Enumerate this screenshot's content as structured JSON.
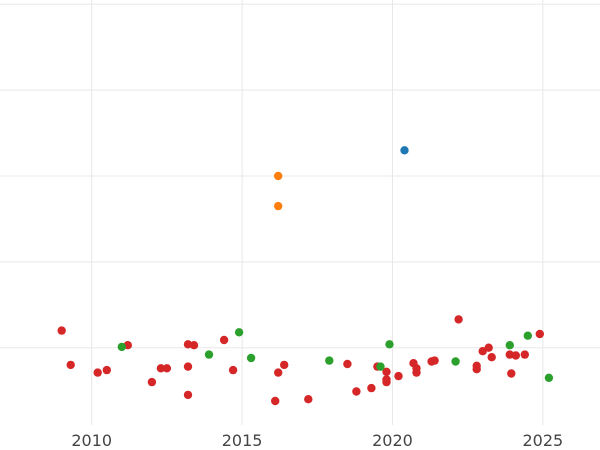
{
  "chart_data": {
    "type": "scatter",
    "title": "",
    "xlabel": "",
    "ylabel": "",
    "xlim": [
      2006.95,
      2026.9
    ],
    "ylim": [
      -0.9,
      4.05
    ],
    "grid": true,
    "x_ticks": [
      2010,
      2015,
      2020,
      2025
    ],
    "x_tick_labels": [
      "2010",
      "2015",
      "2020",
      "2025"
    ],
    "y_gridlines": [
      0,
      1,
      2,
      3,
      4
    ],
    "series": [
      {
        "color": "#d62728",
        "points": [
          {
            "x": 2009.0,
            "y": 0.2
          },
          {
            "x": 2009.3,
            "y": -0.2
          },
          {
            "x": 2010.2,
            "y": -0.29
          },
          {
            "x": 2010.5,
            "y": -0.26
          },
          {
            "x": 2011.2,
            "y": 0.03
          },
          {
            "x": 2012.0,
            "y": -0.4
          },
          {
            "x": 2012.3,
            "y": -0.24
          },
          {
            "x": 2012.5,
            "y": -0.24
          },
          {
            "x": 2013.2,
            "y": 0.04
          },
          {
            "x": 2013.2,
            "y": -0.22
          },
          {
            "x": 2013.4,
            "y": 0.03
          },
          {
            "x": 2013.2,
            "y": -0.55
          },
          {
            "x": 2014.4,
            "y": 0.09
          },
          {
            "x": 2014.7,
            "y": -0.26
          },
          {
            "x": 2016.1,
            "y": -0.62
          },
          {
            "x": 2016.2,
            "y": -0.29
          },
          {
            "x": 2016.4,
            "y": -0.2
          },
          {
            "x": 2017.2,
            "y": -0.6
          },
          {
            "x": 2018.5,
            "y": -0.19
          },
          {
            "x": 2018.8,
            "y": -0.51
          },
          {
            "x": 2019.3,
            "y": -0.47
          },
          {
            "x": 2019.5,
            "y": -0.22
          },
          {
            "x": 2019.8,
            "y": -0.28
          },
          {
            "x": 2019.8,
            "y": -0.37
          },
          {
            "x": 2019.8,
            "y": -0.4
          },
          {
            "x": 2020.2,
            "y": -0.33
          },
          {
            "x": 2020.7,
            "y": -0.18
          },
          {
            "x": 2020.8,
            "y": -0.24
          },
          {
            "x": 2020.8,
            "y": -0.29
          },
          {
            "x": 2021.3,
            "y": -0.16
          },
          {
            "x": 2021.4,
            "y": -0.15
          },
          {
            "x": 2022.2,
            "y": 0.33
          },
          {
            "x": 2022.8,
            "y": -0.21
          },
          {
            "x": 2022.8,
            "y": -0.25
          },
          {
            "x": 2023.0,
            "y": -0.04
          },
          {
            "x": 2023.2,
            "y": 0.0
          },
          {
            "x": 2023.3,
            "y": -0.11
          },
          {
            "x": 2023.9,
            "y": -0.08
          },
          {
            "x": 2023.95,
            "y": -0.3
          },
          {
            "x": 2024.1,
            "y": -0.09
          },
          {
            "x": 2024.4,
            "y": -0.08
          },
          {
            "x": 2024.9,
            "y": 0.16
          }
        ]
      },
      {
        "color": "#2ca02c",
        "points": [
          {
            "x": 2011.0,
            "y": 0.01
          },
          {
            "x": 2013.9,
            "y": -0.08
          },
          {
            "x": 2014.9,
            "y": 0.18
          },
          {
            "x": 2015.3,
            "y": -0.12
          },
          {
            "x": 2017.9,
            "y": -0.15
          },
          {
            "x": 2019.6,
            "y": -0.22
          },
          {
            "x": 2019.9,
            "y": 0.04
          },
          {
            "x": 2022.1,
            "y": -0.16
          },
          {
            "x": 2023.9,
            "y": 0.03
          },
          {
            "x": 2024.5,
            "y": 0.14
          },
          {
            "x": 2025.2,
            "y": -0.35
          }
        ]
      },
      {
        "color": "#ff7f0e",
        "points": [
          {
            "x": 2016.2,
            "y": 2.0
          },
          {
            "x": 2016.2,
            "y": 1.65
          }
        ]
      },
      {
        "color": "#1f77b4",
        "points": [
          {
            "x": 2020.4,
            "y": 2.3
          }
        ]
      }
    ]
  }
}
